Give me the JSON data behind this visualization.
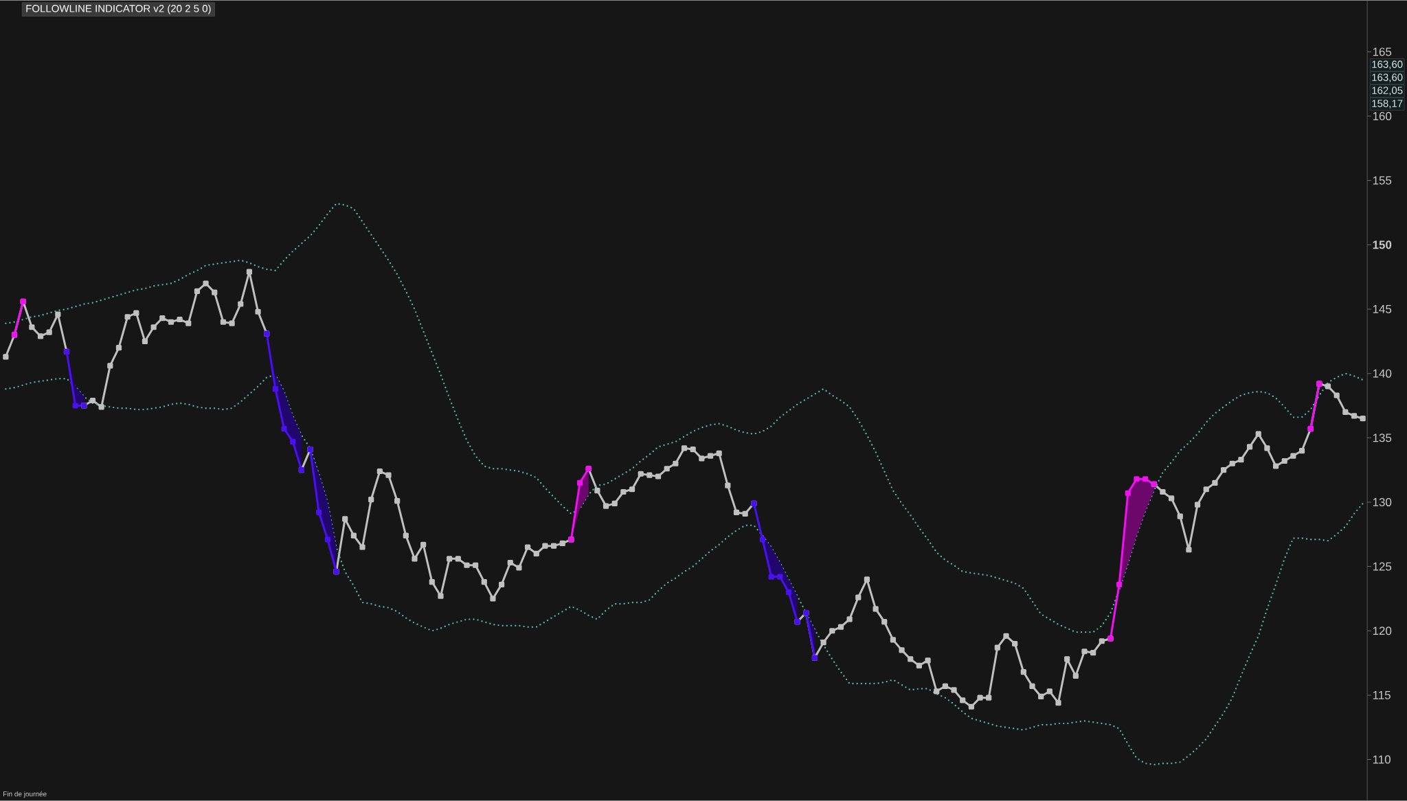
{
  "chart_data": {
    "type": "line",
    "title": "FOLLOWLINE INDICATOR v2 (20 2 5 0)",
    "categories": [
      null,
      null,
      null,
      null,
      null,
      null,
      null,
      null,
      null,
      null,
      null,
      null,
      null,
      null,
      null,
      null,
      null,
      null,
      null,
      null,
      null,
      null,
      null,
      null,
      null,
      null,
      null,
      null,
      null,
      null,
      null,
      null,
      null,
      null,
      null,
      null,
      null,
      null,
      null,
      null,
      null,
      null,
      null,
      null,
      null,
      null,
      null,
      null,
      null,
      null,
      null,
      null,
      null,
      null,
      null,
      null,
      null,
      null,
      null,
      null,
      null,
      null,
      null,
      null,
      null,
      null,
      null,
      null,
      null,
      null,
      null,
      null,
      null,
      null,
      null,
      null,
      null,
      null,
      null,
      null,
      null,
      null,
      null,
      null,
      null,
      null,
      null,
      null,
      null,
      null,
      null,
      null,
      null,
      null,
      null,
      null,
      null,
      null,
      null,
      null,
      null,
      null,
      null,
      null,
      null,
      null,
      null,
      null,
      null,
      null,
      null,
      null,
      null,
      null,
      null,
      null,
      null,
      null,
      null,
      null,
      null,
      null,
      null,
      null,
      null,
      null,
      null,
      null,
      null,
      null,
      null,
      null,
      null,
      null,
      null,
      null,
      null,
      null,
      null,
      null,
      null,
      null,
      null,
      null,
      null,
      null,
      null,
      null,
      null,
      null,
      null,
      null,
      null,
      null,
      null,
      null,
      null
    ],
    "ylim": [
      106.8,
      169.0
    ],
    "yticks": [
      110,
      115,
      120,
      125,
      130,
      135,
      140,
      145,
      {
        "value": 150,
        "label": "**150**"
      },
      155,
      160,
      165
    ],
    "tick_labels": "y",
    "marker": "square",
    "line_style": "solid",
    "series": [
      {
        "color": "#c0c0c0",
        "values": [
          141.3,
          143.0,
          145.6,
          143.6,
          142.9,
          143.2,
          144.6,
          141.7,
          null,
          137.5,
          137.9,
          137.4,
          140.6,
          142.0,
          144.4,
          144.7,
          142.5,
          143.6,
          144.3,
          144.0,
          144.2,
          143.9,
          146.4,
          147.0,
          146.3,
          144.0,
          143.9,
          145.4,
          147.9,
          144.8,
          143.1,
          null,
          null,
          null,
          132.5,
          134.1,
          null,
          null,
          124.6,
          128.7,
          127.4,
          126.5,
          130.2,
          132.4,
          132.1,
          130.1,
          127.4,
          125.6,
          126.7,
          123.8,
          122.7,
          125.6,
          125.6,
          125.1,
          125.1,
          123.8,
          122.5,
          123.6,
          125.3,
          124.9,
          126.5,
          126.0,
          126.6,
          126.6,
          126.8,
          127.1,
          null,
          132.6,
          130.9,
          129.7,
          129.9,
          130.8,
          131.0,
          132.2,
          132.1,
          132.0,
          132.6,
          133.0,
          134.2,
          134.1,
          133.4,
          133.6,
          133.8,
          131.3,
          129.2,
          129.1,
          129.9,
          null,
          null,
          null,
          null,
          120.7,
          121.4,
          117.9,
          119.1,
          120.0,
          120.3,
          120.9,
          122.6,
          124.0,
          121.7,
          120.7,
          119.3,
          118.5,
          117.8,
          117.3,
          117.7,
          115.3,
          115.7,
          115.4,
          114.6,
          114.1,
          114.8,
          114.8,
          118.7,
          119.6,
          119.0,
          116.8,
          115.7,
          114.9,
          115.3,
          114.4,
          117.8,
          116.5,
          118.4,
          118.3,
          119.2,
          119.4,
          null,
          null,
          null,
          null,
          131.4,
          130.8,
          130.3,
          128.9,
          126.3,
          129.8,
          131.0,
          131.5,
          132.5,
          133.0,
          133.3,
          134.3,
          135.3,
          134.2,
          132.8,
          133.2,
          133.6,
          134.0,
          135.7,
          139.2,
          139.0,
          138.3,
          137.0,
          136.7,
          136.5
        ]
      },
      {
        "color": "#4fb3a6",
        "line_style": "dotted",
        "marker": "none",
        "values": [
          143.9,
          144.0,
          144.2,
          144.4,
          144.5,
          144.7,
          144.9,
          145.0,
          145.2,
          145.4,
          145.5,
          145.7,
          145.9,
          146.1,
          146.3,
          146.5,
          146.6,
          146.8,
          146.9,
          147.0,
          147.3,
          147.7,
          148.0,
          148.4,
          148.5,
          148.6,
          148.7,
          148.8,
          148.6,
          148.3,
          148.1,
          148.0,
          148.8,
          149.5,
          150.1,
          150.7,
          151.5,
          152.4,
          153.2,
          153.1,
          152.8,
          151.8,
          150.8,
          149.8,
          148.8,
          147.7,
          146.4,
          145.0,
          143.3,
          141.6,
          139.9,
          138.1,
          136.4,
          134.8,
          133.6,
          132.8,
          132.6,
          132.6,
          132.5,
          132.4,
          132.2,
          131.9,
          131.1,
          130.4,
          129.7,
          129.1,
          129.5,
          130.6,
          131.3,
          131.4,
          131.8,
          132.2,
          132.6,
          133.2,
          133.7,
          134.3,
          134.5,
          134.7,
          135.1,
          135.5,
          135.8,
          136.0,
          136.1,
          135.9,
          135.6,
          135.4,
          135.3,
          135.5,
          135.9,
          136.6,
          137.1,
          137.6,
          138.0,
          138.4,
          138.8,
          138.3,
          137.9,
          137.4,
          136.4,
          135.2,
          133.9,
          132.4,
          130.9,
          129.9,
          129.0,
          128.0,
          127.1,
          126.1,
          125.5,
          125.1,
          124.6,
          124.5,
          124.4,
          124.3,
          124.1,
          123.9,
          123.7,
          123.3,
          122.3,
          121.3,
          120.9,
          120.5,
          120.2,
          119.9,
          119.9,
          119.9,
          120.4,
          121.4,
          123.2,
          125.2,
          127.4,
          129.3,
          130.9,
          132.3,
          133.1,
          134.0,
          134.6,
          135.3,
          136.2,
          136.9,
          137.4,
          137.9,
          138.3,
          138.5,
          138.6,
          138.5,
          138.1,
          137.4,
          136.6,
          136.6,
          137.2,
          138.3,
          139.3,
          139.7,
          140.0,
          139.8,
          139.5
        ]
      },
      {
        "color": "#4fb3a6",
        "line_style": "dotted",
        "marker": "none",
        "values": [
          138.8,
          138.9,
          139.1,
          139.3,
          139.4,
          139.5,
          139.6,
          139.6,
          139.0,
          138.2,
          137.7,
          137.5,
          137.4,
          137.3,
          137.3,
          137.2,
          137.2,
          137.3,
          137.4,
          137.6,
          137.7,
          137.6,
          137.4,
          137.3,
          137.3,
          137.2,
          137.3,
          137.8,
          138.4,
          139.0,
          139.7,
          139.9,
          138.6,
          136.7,
          135.2,
          134.2,
          132.2,
          130.0,
          126.5,
          124.6,
          123.5,
          122.2,
          122.1,
          121.9,
          121.8,
          121.5,
          121.0,
          120.6,
          120.3,
          120.0,
          120.2,
          120.5,
          120.7,
          120.9,
          120.9,
          120.7,
          120.5,
          120.4,
          120.4,
          120.4,
          120.3,
          120.3,
          120.7,
          121.1,
          121.5,
          121.9,
          121.6,
          121.2,
          120.9,
          121.6,
          122.1,
          122.1,
          122.2,
          122.2,
          122.4,
          123.1,
          123.7,
          124.1,
          124.6,
          125.0,
          125.6,
          126.2,
          126.7,
          127.3,
          127.8,
          128.2,
          128.2,
          127.4,
          126.5,
          125.3,
          124.0,
          122.7,
          121.4,
          120.1,
          118.9,
          117.8,
          116.8,
          115.9,
          115.9,
          115.9,
          115.9,
          116.0,
          116.2,
          115.8,
          115.4,
          115.5,
          115.5,
          115.1,
          114.8,
          114.3,
          113.7,
          113.2,
          113.0,
          112.8,
          112.6,
          112.5,
          112.4,
          112.3,
          112.5,
          112.7,
          112.7,
          112.8,
          112.8,
          112.9,
          113.0,
          112.9,
          112.8,
          112.7,
          112.4,
          111.2,
          110.1,
          109.7,
          109.6,
          109.7,
          109.7,
          109.8,
          110.3,
          110.9,
          111.6,
          112.6,
          113.6,
          114.8,
          116.5,
          118.1,
          119.6,
          121.7,
          123.6,
          125.6,
          127.2,
          127.2,
          127.1,
          127.1,
          127.0,
          127.5,
          128.1,
          129.1,
          129.9
        ]
      },
      {
        "color": "#f010f0",
        "values": [
          null,
          143.0,
          145.6,
          null,
          null,
          null,
          null,
          null,
          null,
          null,
          null,
          null,
          null,
          null,
          null,
          null,
          null,
          null,
          null,
          null,
          null,
          null,
          null,
          null,
          null,
          null,
          null,
          null,
          null,
          null,
          null,
          null,
          null,
          null,
          null,
          null,
          null,
          null,
          null,
          null,
          null,
          null,
          null,
          null,
          null,
          null,
          null,
          null,
          null,
          null,
          null,
          null,
          null,
          null,
          null,
          null,
          null,
          null,
          null,
          null,
          null,
          null,
          null,
          null,
          null,
          127.1,
          131.5,
          132.6,
          null,
          null,
          null,
          null,
          null,
          null,
          null,
          null,
          null,
          null,
          null,
          null,
          null,
          null,
          null,
          null,
          null,
          null,
          null,
          null,
          null,
          null,
          null,
          null,
          null,
          null,
          null,
          null,
          null,
          null,
          null,
          null,
          null,
          null,
          null,
          null,
          null,
          null,
          null,
          null,
          null,
          null,
          null,
          null,
          null,
          null,
          null,
          null,
          null,
          null,
          null,
          null,
          null,
          null,
          null,
          null,
          null,
          null,
          null,
          119.4,
          123.6,
          130.7,
          131.8,
          131.8,
          131.4,
          null,
          null,
          null,
          null,
          null,
          null,
          null,
          null,
          null,
          null,
          null,
          null,
          null,
          null,
          null,
          null,
          null,
          135.7,
          139.2,
          null,
          null,
          null,
          null,
          null
        ],
        "lower": [
          null,
          null,
          null,
          null,
          null,
          null,
          null,
          null,
          null,
          null,
          null,
          null,
          null,
          null,
          null,
          null,
          null,
          null,
          null,
          null,
          null,
          null,
          null,
          null,
          null,
          null,
          null,
          null,
          null,
          null,
          null,
          null,
          null,
          null,
          null,
          null,
          null,
          null,
          null,
          null,
          null,
          null,
          null,
          null,
          null,
          null,
          null,
          null,
          null,
          null,
          null,
          null,
          null,
          null,
          null,
          null,
          null,
          null,
          null,
          null,
          null,
          null,
          null,
          null,
          null,
          127.1,
          129.5,
          130.6,
          null,
          null,
          null,
          null,
          null,
          null,
          null,
          null,
          null,
          null,
          null,
          null,
          null,
          null,
          null,
          null,
          null,
          null,
          null,
          null,
          null,
          null,
          null,
          null,
          null,
          null,
          null,
          null,
          null,
          null,
          null,
          null,
          null,
          null,
          null,
          null,
          null,
          null,
          null,
          null,
          null,
          null,
          null,
          null,
          null,
          null,
          null,
          null,
          null,
          null,
          null,
          null,
          null,
          null,
          null,
          null,
          null,
          null,
          null,
          119.4,
          123.2,
          125.2,
          127.4,
          129.3,
          130.9,
          null,
          null,
          null,
          null,
          null,
          null,
          null,
          null,
          null,
          null,
          null,
          null,
          null,
          null,
          null,
          null,
          null,
          null,
          null,
          null,
          null,
          null,
          null,
          null
        ],
        "upper": [
          null,
          null,
          null,
          null,
          null,
          null,
          null,
          null,
          null,
          null,
          null,
          null,
          null,
          null,
          null,
          null,
          null,
          null,
          null,
          null,
          null,
          null,
          null,
          null,
          null,
          null,
          null,
          null,
          null,
          null,
          null,
          null,
          null,
          null,
          null,
          null,
          null,
          null,
          null,
          null,
          null,
          null,
          null,
          null,
          null,
          null,
          null,
          null,
          null,
          null,
          null,
          null,
          null,
          null,
          null,
          null,
          null,
          null,
          null,
          null,
          null,
          null,
          null,
          null,
          null,
          127.1,
          131.5,
          132.6,
          null,
          null,
          null,
          null,
          null,
          null,
          null,
          null,
          null,
          null,
          null,
          null,
          null,
          null,
          null,
          null,
          null,
          null,
          null,
          null,
          null,
          null,
          null,
          null,
          null,
          null,
          null,
          null,
          null,
          null,
          null,
          null,
          null,
          null,
          null,
          null,
          null,
          null,
          null,
          null,
          null,
          null,
          null,
          null,
          null,
          null,
          null,
          null,
          null,
          null,
          null,
          null,
          null,
          null,
          null,
          null,
          null,
          null,
          null,
          119.4,
          123.6,
          130.7,
          131.8,
          131.8,
          131.4,
          null,
          null,
          null,
          null,
          null,
          null,
          null,
          null,
          null,
          null,
          null,
          null,
          null,
          null,
          null,
          null,
          null,
          null,
          null,
          null,
          null,
          null,
          null,
          null
        ]
      },
      {
        "color": "#4a10f0",
        "values": [
          null,
          null,
          null,
          null,
          null,
          null,
          null,
          141.7,
          137.5,
          137.5,
          null,
          null,
          null,
          null,
          null,
          null,
          null,
          null,
          null,
          null,
          null,
          null,
          null,
          null,
          null,
          null,
          null,
          null,
          null,
          null,
          143.1,
          138.8,
          135.7,
          134.7,
          132.5,
          null,
          null,
          null,
          null,
          null,
          null,
          null,
          null,
          null,
          null,
          null,
          null,
          null,
          null,
          null,
          null,
          null,
          null,
          null,
          null,
          null,
          null,
          null,
          null,
          null,
          null,
          null,
          null,
          null,
          null,
          null,
          null,
          null,
          null,
          null,
          null,
          null,
          null,
          null,
          null,
          null,
          null,
          null,
          null,
          null,
          null,
          null,
          null,
          null,
          null,
          null,
          129.9,
          127.1,
          124.2,
          124.2,
          123.0,
          120.7,
          null,
          null,
          null,
          null,
          null,
          null,
          null,
          null,
          null,
          null,
          null,
          null,
          null,
          null,
          null,
          null,
          null,
          null,
          null,
          null,
          null,
          null,
          null,
          null,
          null,
          null,
          null,
          null,
          null,
          null,
          null,
          null,
          null,
          null,
          null,
          null,
          null,
          null,
          null,
          null,
          null,
          null,
          null,
          null,
          null,
          null,
          null,
          null,
          null,
          null,
          null,
          null,
          null,
          null,
          null,
          null,
          null,
          null,
          null,
          null,
          null,
          null,
          null,
          null,
          null
        ],
        "lower": [
          null,
          null,
          null,
          null,
          null,
          null,
          null,
          141.7,
          137.5,
          137.5,
          null,
          null,
          null,
          null,
          null,
          null,
          null,
          null,
          null,
          null,
          null,
          null,
          null,
          null,
          null,
          null,
          null,
          null,
          null,
          null,
          143.1,
          138.8,
          135.7,
          134.7,
          132.5,
          null,
          null,
          null,
          null,
          null,
          null,
          null,
          null,
          null,
          null,
          null,
          null,
          null,
          null,
          null,
          null,
          null,
          null,
          null,
          null,
          null,
          null,
          null,
          null,
          null,
          null,
          null,
          null,
          null,
          null,
          null,
          null,
          null,
          null,
          null,
          null,
          null,
          null,
          null,
          null,
          null,
          null,
          null,
          null,
          null,
          null,
          null,
          null,
          null,
          null,
          null,
          129.9,
          127.1,
          124.2,
          124.2,
          123.0,
          120.7,
          null,
          null,
          null,
          null,
          null,
          null,
          null,
          null,
          null,
          null,
          null,
          null,
          null,
          null,
          null,
          null,
          null,
          null,
          null,
          null,
          null,
          null,
          null,
          null,
          null,
          null,
          null,
          null,
          null,
          null,
          null,
          null,
          null,
          null,
          null,
          null,
          null,
          null,
          null,
          null,
          null,
          null,
          null,
          null,
          null,
          null,
          null,
          null,
          null,
          null,
          null,
          null,
          null,
          null,
          null,
          null,
          null,
          null,
          null,
          null,
          null,
          null,
          null,
          null,
          null
        ],
        "upper": [
          null,
          null,
          null,
          null,
          null,
          null,
          null,
          141.7,
          139.0,
          138.2,
          null,
          null,
          null,
          null,
          null,
          null,
          null,
          null,
          null,
          null,
          null,
          null,
          null,
          null,
          null,
          null,
          null,
          null,
          null,
          null,
          143.1,
          139.9,
          138.6,
          136.7,
          135.2,
          null,
          null,
          null,
          null,
          null,
          null,
          null,
          null,
          null,
          null,
          null,
          null,
          null,
          null,
          null,
          null,
          null,
          null,
          null,
          null,
          null,
          null,
          null,
          null,
          null,
          null,
          null,
          null,
          null,
          null,
          null,
          null,
          null,
          null,
          null,
          null,
          null,
          null,
          null,
          null,
          null,
          null,
          null,
          null,
          null,
          null,
          null,
          null,
          null,
          null,
          null,
          129.9,
          127.4,
          126.5,
          125.3,
          124.0,
          122.7,
          null,
          null,
          null,
          null,
          null,
          null,
          null,
          null,
          null,
          null,
          null,
          null,
          null,
          null,
          null,
          null,
          null,
          null,
          null,
          null,
          null,
          null,
          null,
          null,
          null,
          null,
          null,
          null,
          null,
          null,
          null,
          null,
          null,
          null,
          null,
          null,
          null,
          null,
          null,
          null,
          null,
          null,
          null,
          null,
          null,
          null,
          null,
          null,
          null,
          null,
          null,
          null,
          null,
          null,
          null,
          null,
          null,
          null,
          null,
          null,
          null,
          null,
          null,
          null,
          null
        ]
      },
      {
        "color": "#4a10f0",
        "values": [
          null,
          null,
          null,
          null,
          null,
          null,
          null,
          null,
          null,
          null,
          null,
          null,
          null,
          null,
          null,
          null,
          null,
          null,
          null,
          null,
          null,
          null,
          null,
          null,
          null,
          null,
          null,
          null,
          null,
          null,
          null,
          null,
          null,
          null,
          null,
          134.1,
          129.2,
          127.1,
          124.6,
          null,
          null,
          null,
          null,
          null,
          null,
          null,
          null,
          null,
          null,
          null,
          null,
          null,
          null,
          null,
          null,
          null,
          null,
          null,
          null,
          null,
          null,
          null,
          null,
          null,
          null,
          null,
          null,
          null,
          null,
          null,
          null,
          null,
          null,
          null,
          null,
          null,
          null,
          null,
          null,
          null,
          null,
          null,
          null,
          null,
          null,
          null,
          null,
          null,
          null,
          null,
          null,
          null,
          121.4,
          117.9,
          null,
          null,
          null,
          null,
          null,
          null,
          null,
          null,
          null,
          null,
          null,
          null,
          null,
          null,
          null,
          null,
          null,
          null,
          null,
          null,
          null,
          null,
          null,
          null,
          null,
          null,
          null,
          null,
          null,
          null,
          null,
          null,
          null,
          null,
          null,
          null,
          null,
          null,
          null,
          null,
          null,
          null,
          null,
          null,
          null,
          null,
          null,
          null,
          null,
          null,
          null,
          null,
          null,
          null,
          null,
          null,
          null,
          null,
          null,
          null,
          null,
          null,
          null
        ],
        "lower": [
          null,
          null,
          null,
          null,
          null,
          null,
          null,
          null,
          null,
          null,
          null,
          null,
          null,
          null,
          null,
          null,
          null,
          null,
          null,
          null,
          null,
          null,
          null,
          null,
          null,
          null,
          null,
          null,
          null,
          null,
          null,
          null,
          null,
          null,
          null,
          134.1,
          129.2,
          127.1,
          124.6,
          null,
          null,
          null,
          null,
          null,
          null,
          null,
          null,
          null,
          null,
          null,
          null,
          null,
          null,
          null,
          null,
          null,
          null,
          null,
          null,
          null,
          null,
          null,
          null,
          null,
          null,
          null,
          null,
          null,
          null,
          null,
          null,
          null,
          null,
          null,
          null,
          null,
          null,
          null,
          null,
          null,
          null,
          null,
          null,
          null,
          null,
          null,
          null,
          null,
          null,
          null,
          null,
          null,
          121.4,
          117.9,
          null,
          null,
          null,
          null,
          null,
          null,
          null,
          null,
          null,
          null,
          null,
          null,
          null,
          null,
          null,
          null,
          null,
          null,
          null,
          null,
          null,
          null,
          null,
          null,
          null,
          null,
          null,
          null,
          null,
          null,
          null,
          null,
          null,
          null,
          null,
          null,
          null,
          null,
          null,
          null,
          null,
          null,
          null,
          null,
          null,
          null,
          null,
          null,
          null,
          null,
          null,
          null,
          null,
          null,
          null,
          null,
          null,
          null,
          null,
          null,
          null,
          null,
          null
        ],
        "upper": [
          null,
          null,
          null,
          null,
          null,
          null,
          null,
          null,
          null,
          null,
          null,
          null,
          null,
          null,
          null,
          null,
          null,
          null,
          null,
          null,
          null,
          null,
          null,
          null,
          null,
          null,
          null,
          null,
          null,
          null,
          null,
          null,
          null,
          null,
          null,
          134.1,
          132.2,
          130.0,
          126.5,
          null,
          null,
          null,
          null,
          null,
          null,
          null,
          null,
          null,
          null,
          null,
          null,
          null,
          null,
          null,
          null,
          null,
          null,
          null,
          null,
          null,
          null,
          null,
          null,
          null,
          null,
          null,
          null,
          null,
          null,
          null,
          null,
          null,
          null,
          null,
          null,
          null,
          null,
          null,
          null,
          null,
          null,
          null,
          null,
          null,
          null,
          null,
          null,
          null,
          null,
          null,
          null,
          null,
          121.4,
          120.1,
          null,
          null,
          null,
          null,
          null,
          null,
          null,
          null,
          null,
          null,
          null,
          null,
          null,
          null,
          null,
          null,
          null,
          null,
          null,
          null,
          null,
          null,
          null,
          null,
          null,
          null,
          null,
          null,
          null,
          null,
          null,
          null,
          null,
          null,
          null,
          null,
          null,
          null,
          null,
          null,
          null,
          null,
          null,
          null,
          null,
          null,
          null,
          null,
          null,
          null,
          null,
          null,
          null,
          null,
          null,
          null,
          null,
          null,
          null,
          null,
          null,
          null,
          null
        ]
      }
    ],
    "annotations": [
      "Fin de journée",
      "163,60",
      "163,60",
      "162,05",
      "158,17"
    ]
  }
}
